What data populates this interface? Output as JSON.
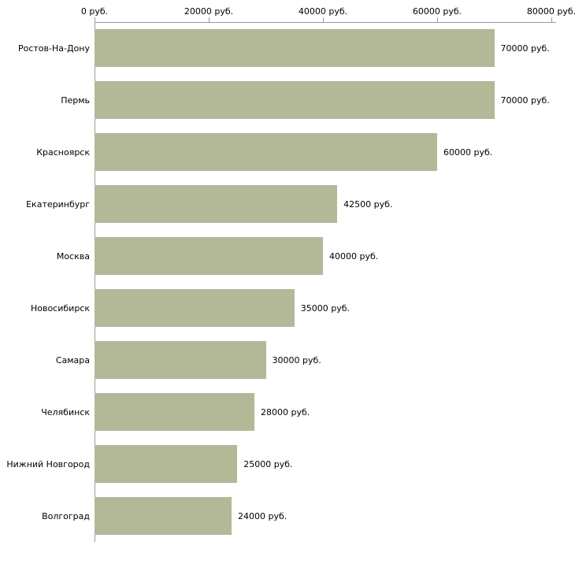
{
  "chart_data": {
    "type": "bar",
    "orientation": "horizontal",
    "unit": "руб.",
    "categories": [
      "Ростов-На-Дону",
      "Пермь",
      "Красноярск",
      "Екатеринбург",
      "Москва",
      "Новосибирск",
      "Самара",
      "Челябинск",
      "Нижний Новгород",
      "Волгоград"
    ],
    "values": [
      70000,
      70000,
      60000,
      42500,
      40000,
      35000,
      30000,
      28000,
      25000,
      24000
    ],
    "value_labels": [
      "70000 руб.",
      "70000 руб.",
      "60000 руб.",
      "42500 руб.",
      "40000 руб.",
      "35000 руб.",
      "30000 руб.",
      "28000 руб.",
      "25000 руб.",
      "24000 руб."
    ],
    "x_axis": {
      "position": "top",
      "xlim": [
        0,
        80000
      ],
      "ticks": [
        {
          "value": 0,
          "label": "0 руб."
        },
        {
          "value": 20000,
          "label": "20000 руб."
        },
        {
          "value": 40000,
          "label": "40000 руб."
        },
        {
          "value": 60000,
          "label": "60000 руб."
        },
        {
          "value": 80000,
          "label": "80000 руб."
        }
      ]
    },
    "style": {
      "bar_color": "#b3b897",
      "axis_color": "#9a9a9a",
      "text_color": "#000000",
      "background": "#ffffff",
      "grid": false,
      "legend": "none"
    }
  }
}
